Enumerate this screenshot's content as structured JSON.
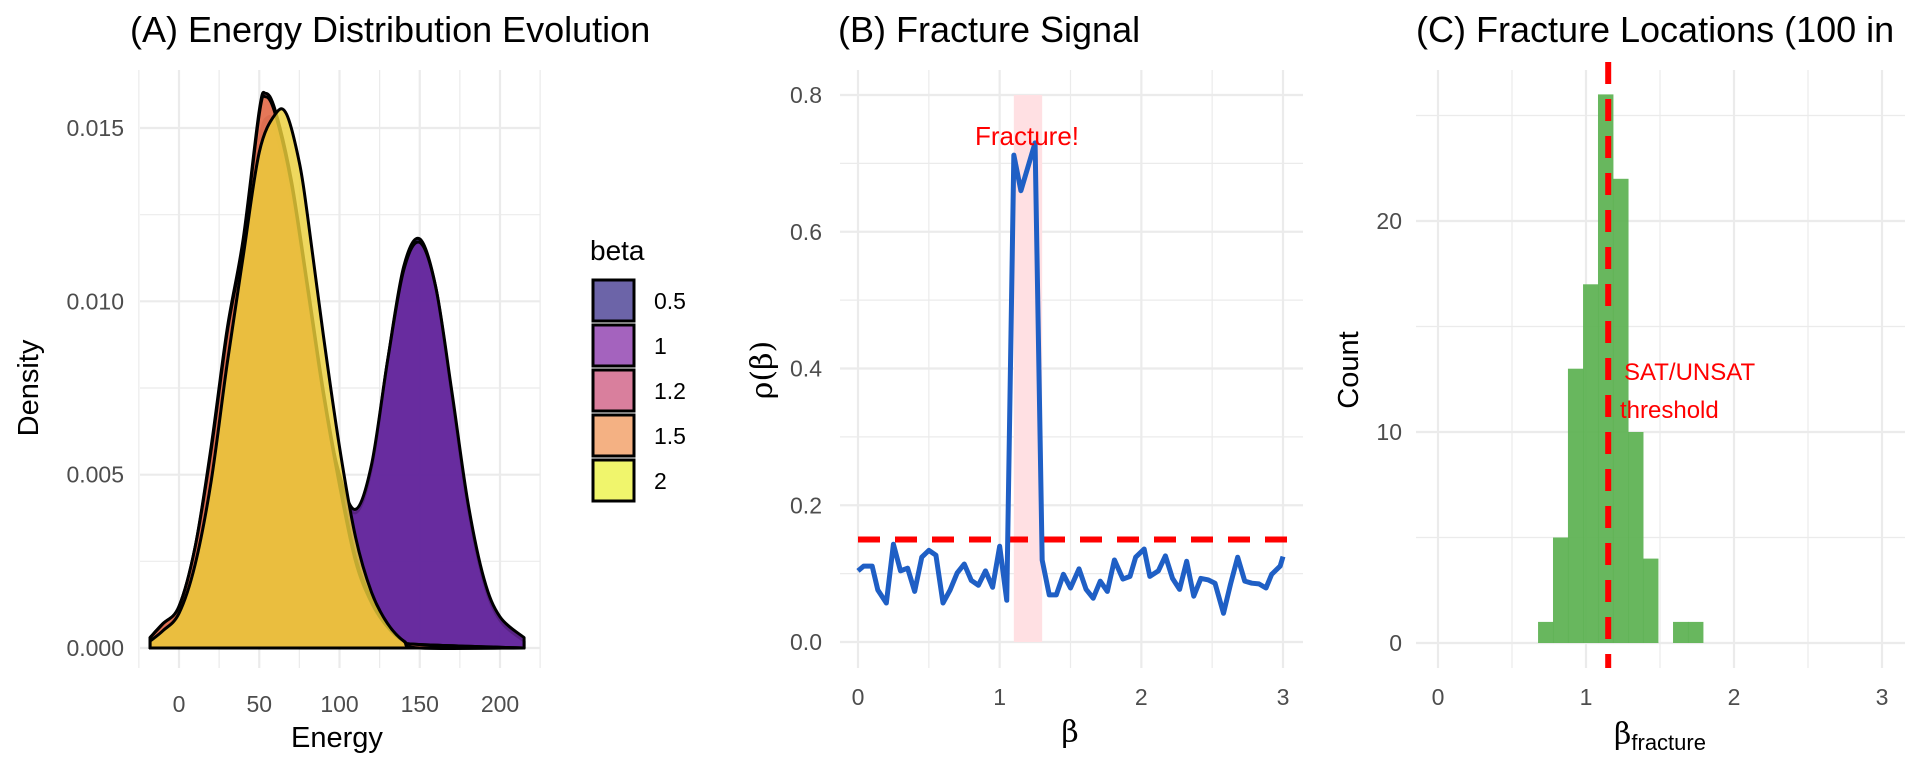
{
  "figure": {
    "panels": [
      {
        "id": "A",
        "title": "(A) Energy Distribution Evolution"
      },
      {
        "id": "B",
        "title": "(B) Fracture Signal"
      },
      {
        "id": "C",
        "title": "(C) Fracture Locations (100 in"
      }
    ]
  },
  "chart_data": [
    {
      "type": "area",
      "panel": "A",
      "title": "(A) Energy Distribution Evolution",
      "xlabel": "Energy",
      "ylabel": "Density",
      "xlim": [
        -25,
        225
      ],
      "ylim": [
        0,
        0.0165
      ],
      "xticks": [
        0,
        50,
        100,
        150,
        200
      ],
      "yticks": [
        0.0,
        0.005,
        0.01,
        0.015
      ],
      "ytick_labels": [
        "0.000",
        "0.005",
        "0.010",
        "0.015"
      ],
      "grid": true,
      "legend": {
        "title": "beta",
        "position": "right",
        "entries": [
          {
            "label": "0.5",
            "color": "#6c64a8"
          },
          {
            "label": "1",
            "color": "#a463be"
          },
          {
            "label": "1.2",
            "color": "#d97f9d"
          },
          {
            "label": "1.5",
            "color": "#f4b183"
          },
          {
            "label": "2",
            "color": "#f0f56c"
          }
        ]
      },
      "series": [
        {
          "name": "0.5",
          "fill": "#3b0f8c",
          "x": [
            -18,
            -10,
            0,
            10,
            20,
            30,
            40,
            50,
            55,
            60,
            70,
            80,
            90,
            100,
            110,
            120,
            130,
            140,
            150,
            160,
            170,
            180,
            190,
            200,
            215
          ],
          "y": [
            0.0003,
            0.0007,
            0.0011,
            0.0028,
            0.0055,
            0.0088,
            0.0113,
            0.0146,
            0.0153,
            0.015,
            0.0131,
            0.0103,
            0.0072,
            0.0049,
            0.0039,
            0.0052,
            0.0083,
            0.011,
            0.0118,
            0.0104,
            0.0073,
            0.0041,
            0.0019,
            0.0008,
            0.0002
          ]
        },
        {
          "name": "1",
          "fill": "#6a2a9f",
          "x": [
            -18,
            -10,
            0,
            10,
            20,
            30,
            40,
            50,
            55,
            60,
            70,
            80,
            90,
            100,
            110,
            120,
            130,
            140,
            150,
            160,
            170,
            180,
            190,
            200,
            215
          ],
          "y": [
            0.0003,
            0.0007,
            0.0011,
            0.0028,
            0.0055,
            0.0088,
            0.0113,
            0.0146,
            0.0152,
            0.0149,
            0.013,
            0.0102,
            0.0072,
            0.005,
            0.004,
            0.0053,
            0.0083,
            0.0109,
            0.0117,
            0.0104,
            0.0074,
            0.0042,
            0.002,
            0.0009,
            0.0003
          ]
        },
        {
          "name": "1.2",
          "fill": "#c8566e",
          "x": [
            -18,
            -10,
            0,
            10,
            20,
            30,
            40,
            50,
            54,
            60,
            70,
            80,
            90,
            100,
            110,
            120,
            130,
            140,
            150,
            215
          ],
          "y": [
            0.0003,
            0.0007,
            0.0012,
            0.0029,
            0.0058,
            0.0092,
            0.0118,
            0.0155,
            0.016,
            0.0155,
            0.0135,
            0.0105,
            0.0074,
            0.0048,
            0.0026,
            0.0014,
            0.0006,
            0.0002,
            0.0001,
            0.0
          ]
        },
        {
          "name": "1.5",
          "fill": "#e9784e",
          "x": [
            -18,
            -10,
            0,
            10,
            20,
            30,
            40,
            50,
            54,
            60,
            70,
            80,
            90,
            100,
            110,
            120,
            130,
            140,
            150,
            215
          ],
          "y": [
            0.0003,
            0.0007,
            0.0012,
            0.0029,
            0.0057,
            0.0091,
            0.0117,
            0.0154,
            0.0159,
            0.0154,
            0.0134,
            0.0104,
            0.0073,
            0.0047,
            0.0025,
            0.0013,
            0.0006,
            0.0002,
            0.0001,
            0.0
          ]
        },
        {
          "name": "2",
          "fill": "#ecd03a",
          "x": [
            -18,
            -10,
            0,
            10,
            20,
            30,
            40,
            50,
            60,
            67,
            75,
            80,
            90,
            100,
            110,
            120,
            130,
            140,
            150,
            215
          ],
          "y": [
            0.0002,
            0.0005,
            0.001,
            0.0024,
            0.0048,
            0.0082,
            0.0113,
            0.0143,
            0.0154,
            0.0154,
            0.014,
            0.0125,
            0.009,
            0.0058,
            0.0032,
            0.0016,
            0.0007,
            0.0002,
            0.0,
            0.0
          ]
        }
      ]
    },
    {
      "type": "line",
      "panel": "B",
      "title": "(B) Fracture Signal",
      "xlabel": "β",
      "ylabel": "ρ(β)",
      "xlim": [
        -0.1,
        3.1
      ],
      "ylim": [
        -0.03,
        0.83
      ],
      "xticks": [
        0,
        1,
        2,
        3
      ],
      "yticks": [
        0.0,
        0.2,
        0.4,
        0.6,
        0.8
      ],
      "ytick_labels": [
        "0.0",
        "0.2",
        "0.4",
        "0.6",
        "0.8"
      ],
      "grid": true,
      "line_color": "#1f5fc5",
      "threshold": {
        "y": 0.15,
        "color": "#ff0000",
        "style": "dashed"
      },
      "highlight_band": {
        "x0": 1.1,
        "x1": 1.3,
        "color": "#ffe0e3"
      },
      "annotation": {
        "text": "Fracture!",
        "x": 1.2,
        "y": 0.74,
        "color": "#ff0000"
      },
      "x": [
        0,
        0.04,
        0.1,
        0.14,
        0.2,
        0.25,
        0.3,
        0.35,
        0.4,
        0.45,
        0.5,
        0.55,
        0.6,
        0.65,
        0.7,
        0.75,
        0.8,
        0.85,
        0.9,
        0.95,
        1.0,
        1.05,
        1.1,
        1.15,
        1.25,
        1.3,
        1.35,
        1.4,
        1.45,
        1.5,
        1.56,
        1.61,
        1.66,
        1.71,
        1.76,
        1.81,
        1.87,
        1.92,
        1.96,
        2.02,
        2.06,
        2.12,
        2.17,
        2.22,
        2.27,
        2.32,
        2.37,
        2.42,
        2.47,
        2.52,
        2.58,
        2.63,
        2.68,
        2.73,
        2.78,
        2.83,
        2.88,
        2.92,
        2.98,
        3.0
      ],
      "y": [
        0.104,
        0.111,
        0.111,
        0.076,
        0.057,
        0.143,
        0.104,
        0.108,
        0.074,
        0.124,
        0.134,
        0.127,
        0.057,
        0.076,
        0.101,
        0.114,
        0.09,
        0.083,
        0.104,
        0.08,
        0.14,
        0.061,
        0.712,
        0.66,
        0.73,
        0.12,
        0.069,
        0.069,
        0.099,
        0.079,
        0.107,
        0.077,
        0.064,
        0.089,
        0.074,
        0.12,
        0.092,
        0.096,
        0.124,
        0.136,
        0.096,
        0.104,
        0.126,
        0.093,
        0.077,
        0.118,
        0.067,
        0.093,
        0.091,
        0.086,
        0.042,
        0.085,
        0.124,
        0.089,
        0.086,
        0.085,
        0.079,
        0.099,
        0.111,
        0.125
      ]
    },
    {
      "type": "bar",
      "panel": "C",
      "title": "(C) Fracture Locations (100 in",
      "xlabel": "β_fracture",
      "xlabel_main": "β",
      "xlabel_sub": "fracture",
      "ylabel": "Count",
      "xlim": [
        -0.1,
        3.1
      ],
      "ylim": [
        -1.5,
        27.5
      ],
      "xticks": [
        0,
        1,
        2,
        3
      ],
      "yticks": [
        0,
        10,
        20
      ],
      "ytick_labels": [
        "0",
        "10",
        "20"
      ],
      "grid": true,
      "bar_color": "#5bb150",
      "bins": [
        {
          "x0": 0.676,
          "x1": 0.777,
          "count": 1
        },
        {
          "x0": 0.777,
          "x1": 0.878,
          "count": 5
        },
        {
          "x0": 0.878,
          "x1": 0.98,
          "count": 13
        },
        {
          "x0": 0.98,
          "x1": 1.081,
          "count": 17
        },
        {
          "x0": 1.081,
          "x1": 1.182,
          "count": 26
        },
        {
          "x0": 1.182,
          "x1": 1.284,
          "count": 22
        },
        {
          "x0": 1.284,
          "x1": 1.385,
          "count": 10
        },
        {
          "x0": 1.385,
          "x1": 1.486,
          "count": 4
        },
        {
          "x0": 1.486,
          "x1": 1.588,
          "count": 0
        },
        {
          "x0": 1.588,
          "x1": 1.689,
          "count": 1
        },
        {
          "x0": 1.689,
          "x1": 1.79,
          "count": 1
        }
      ],
      "threshold": {
        "x": 1.15,
        "color": "#ff0000",
        "style": "dashed"
      },
      "annotation": {
        "lines": [
          "SAT/UNSAT",
          "threshold"
        ],
        "x": 1.2,
        "y": 12,
        "color": "#ff0000"
      }
    }
  ]
}
